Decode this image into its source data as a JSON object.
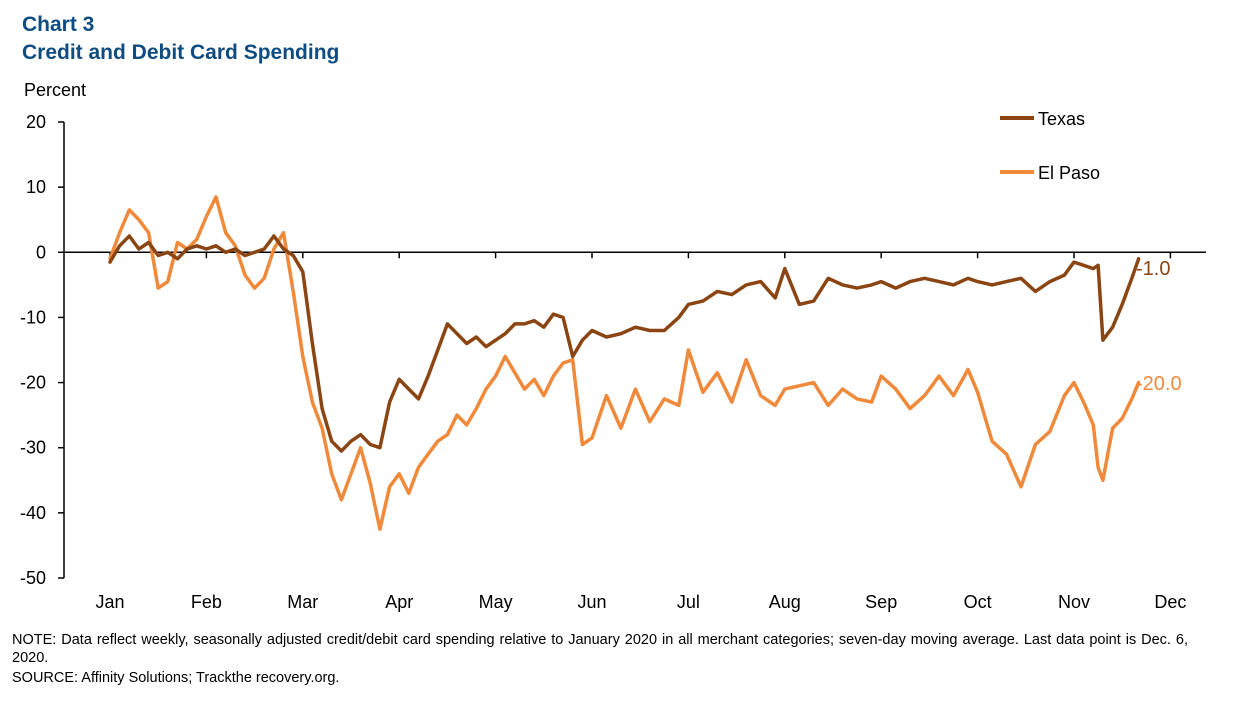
{
  "header": {
    "chart_number": "Chart 3",
    "title": "Credit and Debit Card Spending"
  },
  "footer": {
    "note": "NOTE: Data reflect weekly, seasonally adjusted credit/debit card spending relative to January 2020 in all merchant categories; seven-day moving average. Last data point is Dec. 6, 2020.",
    "source": "SOURCE: Affinity Solutions; Trackthe recovery.org."
  },
  "colors": {
    "texas": "#8b4513",
    "el_paso": "#f0893a",
    "axis": "#000000"
  },
  "chart_data": {
    "type": "line",
    "title": "Credit and Debit Card Spending",
    "ylabel": "Percent",
    "xlabel": "",
    "ylim": [
      -50,
      20
    ],
    "yticks": [
      20,
      10,
      0,
      -10,
      -20,
      -30,
      -40,
      -50
    ],
    "categories": [
      "Jan",
      "Feb",
      "Mar",
      "Apr",
      "May",
      "Jun",
      "Jul",
      "Aug",
      "Sep",
      "Oct",
      "Nov",
      "Dec"
    ],
    "xlim": [
      0,
      11
    ],
    "legend": "top-right",
    "grid": false,
    "series": [
      {
        "name": "Texas",
        "end_label": "-1.0",
        "x": [
          0,
          0.1,
          0.2,
          0.3,
          0.4,
          0.5,
          0.6,
          0.7,
          0.8,
          0.9,
          1.0,
          1.1,
          1.2,
          1.3,
          1.4,
          1.5,
          1.6,
          1.7,
          1.8,
          1.9,
          2.0,
          2.1,
          2.2,
          2.3,
          2.4,
          2.5,
          2.6,
          2.7,
          2.8,
          2.9,
          3.0,
          3.1,
          3.2,
          3.3,
          3.4,
          3.5,
          3.6,
          3.7,
          3.8,
          3.9,
          4.0,
          4.1,
          4.2,
          4.3,
          4.4,
          4.5,
          4.6,
          4.7,
          4.8,
          4.9,
          5.0,
          5.15,
          5.3,
          5.45,
          5.6,
          5.75,
          5.9,
          6.0,
          6.15,
          6.3,
          6.45,
          6.6,
          6.75,
          6.9,
          7.0,
          7.15,
          7.3,
          7.45,
          7.6,
          7.75,
          7.9,
          8.0,
          8.15,
          8.3,
          8.45,
          8.6,
          8.75,
          8.9,
          9.0,
          9.15,
          9.3,
          9.45,
          9.6,
          9.75,
          9.9,
          10.0,
          10.1,
          10.2,
          10.25,
          10.3,
          10.4,
          10.5,
          10.6,
          10.67
        ],
        "values": [
          -1.5,
          1.0,
          2.5,
          0.5,
          1.5,
          -0.5,
          0.0,
          -1.0,
          0.5,
          1.0,
          0.5,
          1.0,
          0.0,
          0.5,
          -0.5,
          0.0,
          0.5,
          2.5,
          0.5,
          -0.5,
          -3.0,
          -14.0,
          -24.0,
          -29.0,
          -30.5,
          -29.0,
          -28.0,
          -29.5,
          -30.0,
          -23.0,
          -19.5,
          -21.0,
          -22.5,
          -19.0,
          -15.0,
          -11.0,
          -12.5,
          -14.0,
          -13.0,
          -14.5,
          -13.5,
          -12.5,
          -11.0,
          -11.0,
          -10.5,
          -11.5,
          -9.5,
          -10.0,
          -16.0,
          -13.5,
          -12.0,
          -13.0,
          -12.5,
          -11.5,
          -12.0,
          -12.0,
          -10.0,
          -8.0,
          -7.5,
          -6.0,
          -6.5,
          -5.0,
          -4.5,
          -7.0,
          -2.5,
          -8.0,
          -7.5,
          -4.0,
          -5.0,
          -5.5,
          -5.0,
          -4.5,
          -5.5,
          -4.5,
          -4.0,
          -4.5,
          -5.0,
          -4.0,
          -4.5,
          -5.0,
          -4.5,
          -4.0,
          -6.0,
          -4.5,
          -3.5,
          -1.5,
          -2.0,
          -2.5,
          -2.0,
          -13.5,
          -11.5,
          -8.0,
          -4.0,
          -1.0
        ]
      },
      {
        "name": "El Paso",
        "end_label": "-20.0",
        "x": [
          0,
          0.1,
          0.2,
          0.3,
          0.4,
          0.5,
          0.6,
          0.7,
          0.8,
          0.9,
          1.0,
          1.1,
          1.2,
          1.3,
          1.4,
          1.5,
          1.6,
          1.7,
          1.8,
          1.9,
          2.0,
          2.1,
          2.2,
          2.3,
          2.4,
          2.5,
          2.6,
          2.7,
          2.8,
          2.9,
          3.0,
          3.1,
          3.2,
          3.3,
          3.4,
          3.5,
          3.6,
          3.7,
          3.8,
          3.9,
          4.0,
          4.1,
          4.2,
          4.3,
          4.4,
          4.5,
          4.6,
          4.7,
          4.8,
          4.9,
          5.0,
          5.15,
          5.3,
          5.45,
          5.6,
          5.75,
          5.9,
          6.0,
          6.15,
          6.3,
          6.45,
          6.6,
          6.75,
          6.9,
          7.0,
          7.15,
          7.3,
          7.45,
          7.6,
          7.75,
          7.9,
          8.0,
          8.15,
          8.3,
          8.45,
          8.6,
          8.75,
          8.9,
          9.0,
          9.15,
          9.3,
          9.45,
          9.6,
          9.75,
          9.9,
          10.0,
          10.1,
          10.2,
          10.25,
          10.3,
          10.4,
          10.5,
          10.6,
          10.67
        ],
        "values": [
          -1.0,
          3.0,
          6.5,
          5.0,
          3.0,
          -5.5,
          -4.5,
          1.5,
          0.5,
          2.0,
          5.5,
          8.5,
          3.0,
          1.0,
          -3.5,
          -5.5,
          -4.0,
          0.5,
          3.0,
          -6.0,
          -16.0,
          -23.0,
          -27.0,
          -34.0,
          -38.0,
          -34.0,
          -30.0,
          -35.5,
          -42.5,
          -36.0,
          -34.0,
          -37.0,
          -33.0,
          -31.0,
          -29.0,
          -28.0,
          -25.0,
          -26.5,
          -24.0,
          -21.0,
          -19.0,
          -16.0,
          -18.5,
          -21.0,
          -19.5,
          -22.0,
          -19.0,
          -17.0,
          -16.5,
          -29.5,
          -28.5,
          -22.0,
          -27.0,
          -21.0,
          -26.0,
          -22.5,
          -23.5,
          -15.0,
          -21.5,
          -18.5,
          -23.0,
          -16.5,
          -22.0,
          -23.5,
          -21.0,
          -20.5,
          -20.0,
          -23.5,
          -21.0,
          -22.5,
          -23.0,
          -19.0,
          -21.0,
          -24.0,
          -22.0,
          -19.0,
          -22.0,
          -18.0,
          -21.5,
          -29.0,
          -31.0,
          -36.0,
          -29.5,
          -27.5,
          -22.0,
          -20.0,
          -23.0,
          -26.5,
          -33.0,
          -35.0,
          -27.0,
          -25.5,
          -22.5,
          -20.0
        ]
      }
    ]
  }
}
